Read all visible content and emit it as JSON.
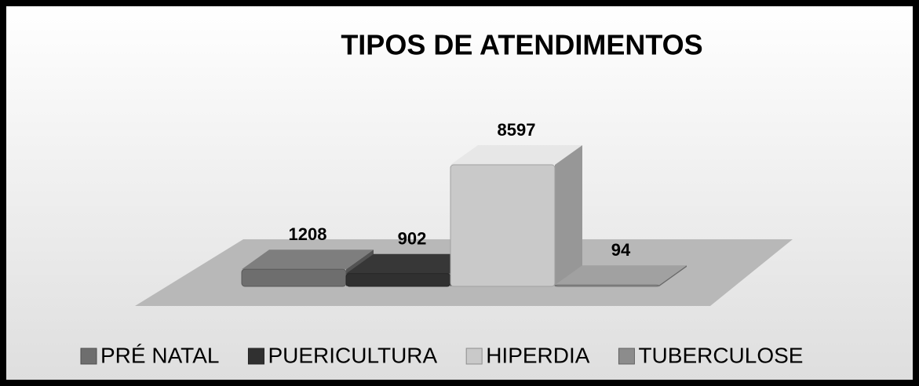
{
  "chart_data": {
    "type": "bar3d",
    "title": "TIPOS DE ATENDIMENTOS",
    "series": [
      {
        "name": "PRÉ NATAL",
        "color": "#6e6e6e",
        "values": [
          1208
        ]
      },
      {
        "name": "PUERICULTURA",
        "color": "#303030",
        "values": [
          902
        ]
      },
      {
        "name": "HIPERDIA",
        "color": "#c9c9c9",
        "values": [
          8597
        ]
      },
      {
        "name": "TUBERCULOSE",
        "color": "#8c8c8c",
        "values": [
          94
        ]
      }
    ],
    "legend": "bottom"
  }
}
